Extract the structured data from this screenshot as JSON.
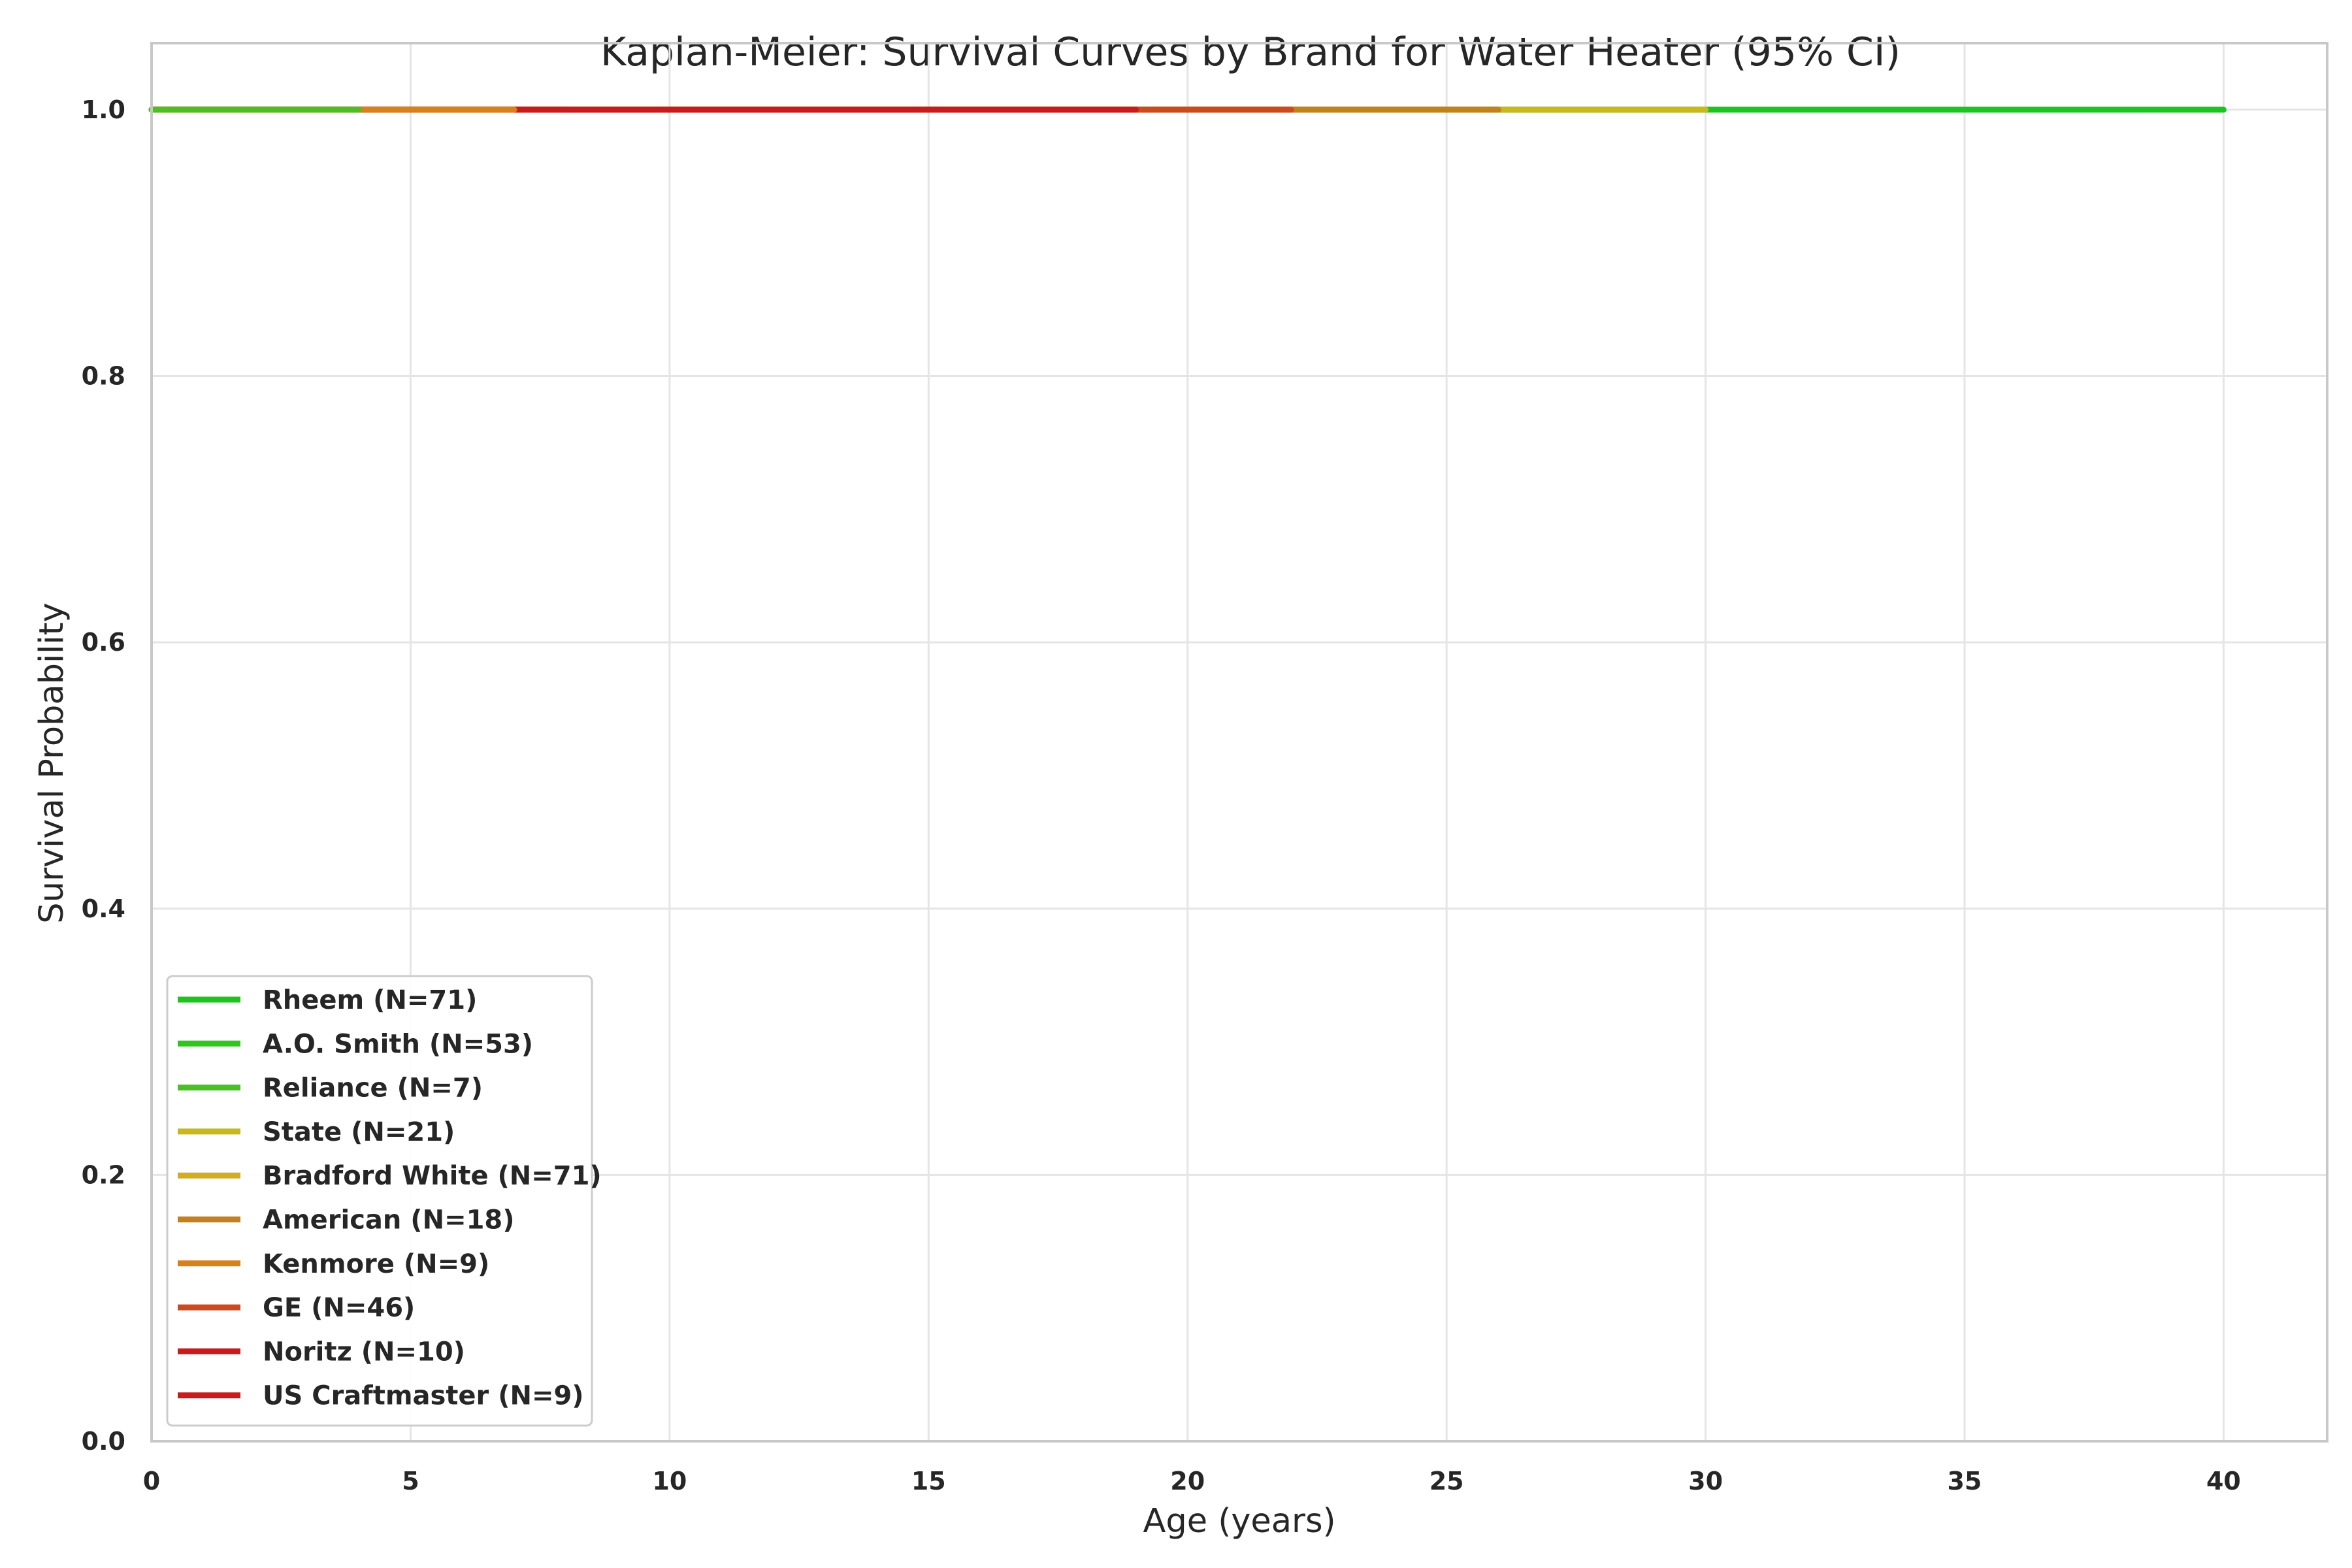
{
  "chart_data": {
    "type": "line",
    "title": "Kaplan-Meier: Survival Curves by Brand for Water Heater (95% CI)",
    "xlabel": "Age (years)",
    "ylabel": "Survival Probability",
    "xlim": [
      0,
      42
    ],
    "ylim": [
      0,
      1.05
    ],
    "xticks": [
      0,
      5,
      10,
      15,
      20,
      25,
      30,
      35,
      40
    ],
    "xtick_labels": [
      "0",
      "5",
      "10",
      "15",
      "20",
      "25",
      "30",
      "35",
      "40"
    ],
    "yticks": [
      0.0,
      0.2,
      0.4,
      0.6,
      0.8,
      1.0
    ],
    "ytick_labels": [
      "0.0",
      "0.2",
      "0.4",
      "0.6",
      "0.8",
      "1.0"
    ],
    "grid": true,
    "legend_position": "lower-left",
    "series": [
      {
        "name": "Rheem (N=71)",
        "color": "#1fc31f",
        "x": [
          0,
          40
        ],
        "y": [
          1.0,
          1.0
        ]
      },
      {
        "name": "A.O. Smith (N=53)",
        "color": "#33c51f",
        "x": [
          0,
          30
        ],
        "y": [
          1.0,
          1.0
        ]
      },
      {
        "name": "Reliance (N=7)",
        "color": "#4cbf26",
        "x": [
          0,
          4
        ],
        "y": [
          1.0,
          1.0
        ]
      },
      {
        "name": "State (N=21)",
        "color": "#c9b81c",
        "x": [
          0,
          30
        ],
        "y": [
          1.0,
          1.0
        ]
      },
      {
        "name": "Bradford White (N=71)",
        "color": "#d0ad22",
        "x": [
          0,
          26
        ],
        "y": [
          1.0,
          1.0
        ]
      },
      {
        "name": "American (N=18)",
        "color": "#c38020",
        "x": [
          0,
          26
        ],
        "y": [
          1.0,
          1.0
        ]
      },
      {
        "name": "Kenmore (N=9)",
        "color": "#d5821c",
        "x": [
          0,
          7
        ],
        "y": [
          1.0,
          1.0
        ]
      },
      {
        "name": "GE (N=46)",
        "color": "#cb4a20",
        "x": [
          0,
          22
        ],
        "y": [
          1.0,
          1.0
        ]
      },
      {
        "name": "Noritz (N=10)",
        "color": "#c81c1c",
        "x": [
          0,
          8
        ],
        "y": [
          1.0,
          1.0
        ]
      },
      {
        "name": "US Craftmaster (N=9)",
        "color": "#c81c1c",
        "x": [
          0,
          19
        ],
        "y": [
          1.0,
          1.0
        ]
      }
    ]
  }
}
